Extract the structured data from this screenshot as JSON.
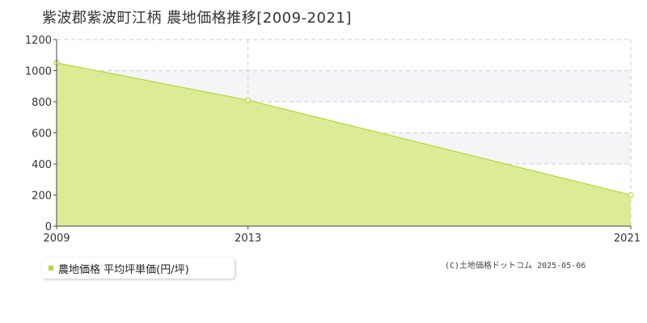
{
  "title": "紫波郡紫波町江柄 農地価格推移[2009-2021]",
  "legend": {
    "label": "農地価格 平均坪単価(円/坪)"
  },
  "credit": "(C)土地価格ドットコム 2025-05-06",
  "colors": {
    "fill": "#d9eb8f",
    "line": "#b5d73c",
    "legend_marker": "#b5d73c",
    "band": "#f5f5f8",
    "grid": "#cccccc"
  },
  "chart_data": {
    "type": "area",
    "x": [
      2009,
      2013,
      2021
    ],
    "y_ticks": [
      0,
      200,
      400,
      600,
      800,
      1000,
      1200
    ],
    "x_ticks": [
      "2009",
      "2013",
      "2021"
    ],
    "ylim": [
      0,
      1200
    ],
    "xlim": [
      2009,
      2021
    ],
    "grid": true,
    "series": [
      {
        "name": "農地価格 平均坪単価(円/坪)",
        "values": [
          1050,
          810,
          200
        ]
      }
    ]
  }
}
